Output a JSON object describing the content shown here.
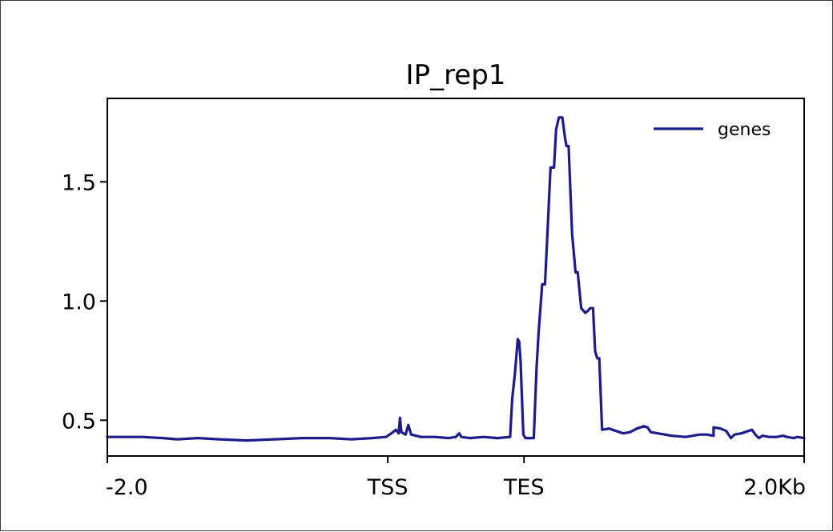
{
  "chart_data": {
    "type": "line",
    "title": "IP_rep1",
    "xlabel": "",
    "ylabel": "",
    "xlim": [
      0,
      1
    ],
    "ylim": [
      0.35,
      1.85
    ],
    "grid": false,
    "legend_position": "top-right",
    "x_ticks": [
      {
        "value": 0.0,
        "label": "-2.0"
      },
      {
        "value": 0.4025,
        "label": "TSS"
      },
      {
        "value": 0.598,
        "label": "TES"
      },
      {
        "value": 1.0,
        "label": "2.0Kb"
      }
    ],
    "y_ticks": [
      {
        "value": 0.5,
        "label": "0.5"
      },
      {
        "value": 1.0,
        "label": "1.0"
      },
      {
        "value": 1.5,
        "label": "1.5"
      }
    ],
    "series": [
      {
        "name": "genes",
        "color": "#1c1c8c",
        "points": [
          [
            0.0,
            0.43
          ],
          [
            0.02,
            0.43
          ],
          [
            0.05,
            0.43
          ],
          [
            0.08,
            0.425
          ],
          [
            0.1,
            0.42
          ],
          [
            0.13,
            0.425
          ],
          [
            0.16,
            0.42
          ],
          [
            0.2,
            0.415
          ],
          [
            0.24,
            0.42
          ],
          [
            0.28,
            0.425
          ],
          [
            0.32,
            0.425
          ],
          [
            0.35,
            0.42
          ],
          [
            0.38,
            0.425
          ],
          [
            0.4,
            0.43
          ],
          [
            0.41,
            0.45
          ],
          [
            0.414,
            0.46
          ],
          [
            0.418,
            0.445
          ],
          [
            0.42,
            0.51
          ],
          [
            0.422,
            0.45
          ],
          [
            0.428,
            0.44
          ],
          [
            0.432,
            0.48
          ],
          [
            0.436,
            0.44
          ],
          [
            0.45,
            0.43
          ],
          [
            0.47,
            0.43
          ],
          [
            0.49,
            0.425
          ],
          [
            0.5,
            0.43
          ],
          [
            0.505,
            0.445
          ],
          [
            0.508,
            0.43
          ],
          [
            0.52,
            0.425
          ],
          [
            0.54,
            0.43
          ],
          [
            0.56,
            0.425
          ],
          [
            0.578,
            0.43
          ],
          [
            0.581,
            0.59
          ],
          [
            0.585,
            0.7
          ],
          [
            0.589,
            0.84
          ],
          [
            0.591,
            0.83
          ],
          [
            0.593,
            0.75
          ],
          [
            0.597,
            0.44
          ],
          [
            0.6,
            0.425
          ],
          [
            0.612,
            0.425
          ],
          [
            0.616,
            0.72
          ],
          [
            0.619,
            0.87
          ],
          [
            0.624,
            1.07
          ],
          [
            0.628,
            1.07
          ],
          [
            0.633,
            1.37
          ],
          [
            0.636,
            1.56
          ],
          [
            0.641,
            1.56
          ],
          [
            0.644,
            1.72
          ],
          [
            0.648,
            1.77
          ],
          [
            0.653,
            1.77
          ],
          [
            0.657,
            1.68
          ],
          [
            0.659,
            1.65
          ],
          [
            0.662,
            1.65
          ],
          [
            0.667,
            1.28
          ],
          [
            0.672,
            1.12
          ],
          [
            0.675,
            1.12
          ],
          [
            0.68,
            0.97
          ],
          [
            0.686,
            0.95
          ],
          [
            0.69,
            0.96
          ],
          [
            0.693,
            0.97
          ],
          [
            0.697,
            0.97
          ],
          [
            0.7,
            0.79
          ],
          [
            0.703,
            0.76
          ],
          [
            0.706,
            0.76
          ],
          [
            0.71,
            0.46
          ],
          [
            0.72,
            0.465
          ],
          [
            0.73,
            0.455
          ],
          [
            0.74,
            0.445
          ],
          [
            0.75,
            0.45
          ],
          [
            0.76,
            0.465
          ],
          [
            0.77,
            0.475
          ],
          [
            0.775,
            0.47
          ],
          [
            0.78,
            0.45
          ],
          [
            0.79,
            0.445
          ],
          [
            0.8,
            0.44
          ],
          [
            0.81,
            0.435
          ],
          [
            0.83,
            0.43
          ],
          [
            0.84,
            0.435
          ],
          [
            0.85,
            0.44
          ],
          [
            0.86,
            0.44
          ],
          [
            0.87,
            0.435
          ],
          [
            0.87,
            0.47
          ],
          [
            0.88,
            0.465
          ],
          [
            0.888,
            0.455
          ],
          [
            0.895,
            0.425
          ],
          [
            0.9,
            0.44
          ],
          [
            0.91,
            0.445
          ],
          [
            0.92,
            0.455
          ],
          [
            0.925,
            0.46
          ],
          [
            0.93,
            0.44
          ],
          [
            0.935,
            0.425
          ],
          [
            0.94,
            0.435
          ],
          [
            0.95,
            0.43
          ],
          [
            0.96,
            0.43
          ],
          [
            0.97,
            0.435
          ],
          [
            0.975,
            0.43
          ],
          [
            0.985,
            0.425
          ],
          [
            0.99,
            0.43
          ],
          [
            1.0,
            0.425
          ]
        ]
      }
    ]
  }
}
